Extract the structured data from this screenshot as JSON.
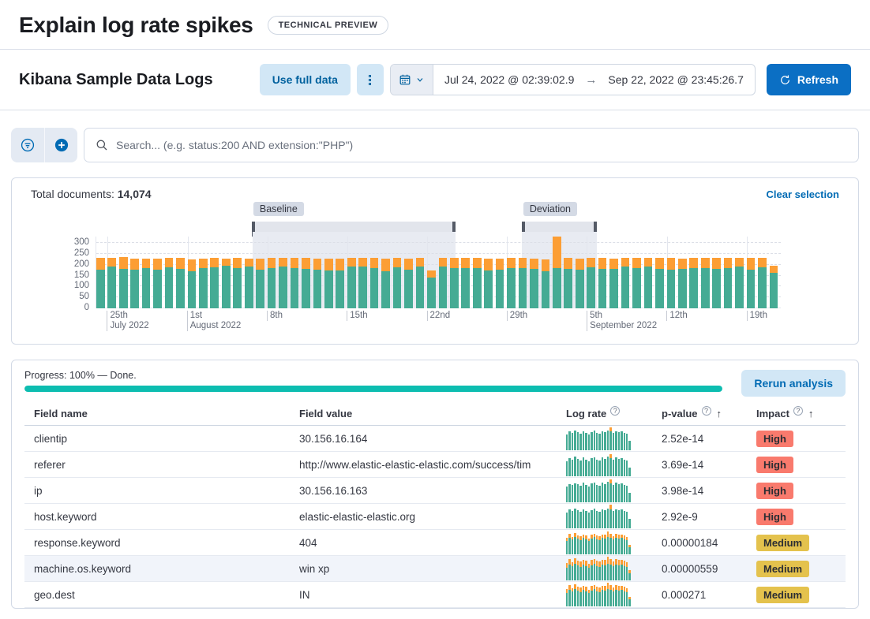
{
  "header": {
    "title": "Explain log rate spikes",
    "badge": "TECHNICAL PREVIEW"
  },
  "toolbar": {
    "dataview": "Kibana Sample Data Logs",
    "use_full_data": "Use full data",
    "date_start": "Jul 24, 2022 @ 02:39:02.9",
    "date_arrow": "→",
    "date_end": "Sep 22, 2022 @ 23:45:26.7",
    "refresh": "Refresh"
  },
  "search": {
    "placeholder": "Search... (e.g. status:200 AND extension:\"PHP\")"
  },
  "doc_count": {
    "label": "Total documents: ",
    "value": "14,074",
    "clear": "Clear selection"
  },
  "chart_data": {
    "type": "bar",
    "title": "Document count histogram",
    "stacked": true,
    "x_unit": "day",
    "x_start": "Jul 24, 2022",
    "x_end": "Sep 21, 2022",
    "y_ticks": [
      0,
      50,
      100,
      150,
      200,
      250,
      300
    ],
    "y_max": 330,
    "grid": true,
    "x_ticks": [
      {
        "label": "25th",
        "sub": "July 2022",
        "index": 1
      },
      {
        "label": "1st",
        "sub": "August 2022",
        "index": 8
      },
      {
        "label": "8th",
        "index": 15
      },
      {
        "label": "15th",
        "index": 22
      },
      {
        "label": "22nd",
        "index": 29
      },
      {
        "label": "29th",
        "index": 36
      },
      {
        "label": "5th",
        "sub": "September 2022",
        "index": 43
      },
      {
        "label": "12th",
        "index": 50
      },
      {
        "label": "19th",
        "index": 57
      }
    ],
    "series": [
      {
        "name": "doc_count",
        "color": "#45ab94",
        "values": [
          178,
          190,
          182,
          177,
          185,
          176,
          188,
          179,
          170,
          185,
          188,
          195,
          185,
          190,
          177,
          185,
          192,
          184,
          181,
          178,
          174,
          173,
          191,
          192,
          185,
          170,
          189,
          177,
          192,
          141,
          192,
          186,
          183,
          186,
          172,
          178,
          184,
          186,
          180,
          170,
          185,
          180,
          178,
          188,
          182,
          180,
          192,
          183,
          190,
          180,
          178,
          180,
          183,
          185,
          179,
          183,
          190,
          178,
          188,
          162
        ]
      },
      {
        "name": "other",
        "color": "#fc9e34",
        "values": [
          52,
          40,
          53,
          50,
          43,
          52,
          44,
          51,
          55,
          43,
          42,
          33,
          45,
          38,
          51,
          45,
          38,
          46,
          49,
          50,
          54,
          55,
          39,
          38,
          45,
          58,
          41,
          51,
          40,
          32,
          38,
          44,
          47,
          44,
          56,
          50,
          46,
          44,
          48,
          55,
          145,
          50,
          50,
          42,
          48,
          48,
          38,
          47,
          40,
          50,
          52,
          48,
          47,
          45,
          51,
          47,
          40,
          52,
          42,
          33
        ]
      }
    ],
    "annotations": {
      "baseline": {
        "label": "Baseline",
        "start_frac": 0.228,
        "end_frac": 0.525
      },
      "deviation": {
        "label": "Deviation",
        "start_frac": 0.622,
        "end_frac": 0.731
      }
    }
  },
  "analysis": {
    "progress_label": "Progress: 100% — Done.",
    "progress_pct": 100,
    "rerun": "Rerun analysis"
  },
  "table": {
    "columns": [
      {
        "label": "Field name"
      },
      {
        "label": "Field value"
      },
      {
        "label": "Log rate",
        "help": true
      },
      {
        "label": "p-value",
        "help": true,
        "sort": "↑"
      },
      {
        "label": "Impact",
        "help": true,
        "sort": "↑"
      }
    ],
    "rows": [
      {
        "field_name": "clientip",
        "field_value": "30.156.16.164",
        "p_value": "2.52e-14",
        "impact": "High",
        "spark": {
          "g": [
            20,
            24,
            22,
            25,
            23,
            21,
            24,
            22,
            20,
            23,
            25,
            22,
            21,
            24,
            23,
            25,
            24,
            22,
            24,
            23,
            24,
            22,
            21,
            12
          ],
          "o": [
            0,
            0,
            0,
            0,
            0,
            0,
            0,
            0,
            0,
            0,
            0,
            0,
            0,
            0,
            0,
            0,
            5,
            0,
            0,
            0,
            0,
            0,
            0,
            0
          ]
        }
      },
      {
        "field_name": "referer",
        "field_value": "http://www.elastic-elastic-elastic.com/success/tim",
        "p_value": "3.69e-14",
        "impact": "High",
        "spark": {
          "g": [
            19,
            23,
            21,
            25,
            22,
            20,
            24,
            21,
            19,
            23,
            24,
            21,
            20,
            24,
            22,
            25,
            23,
            21,
            24,
            22,
            23,
            21,
            20,
            11
          ],
          "o": [
            0,
            0,
            0,
            0,
            0,
            0,
            0,
            0,
            0,
            0,
            0,
            0,
            0,
            0,
            0,
            0,
            5,
            0,
            0,
            0,
            0,
            0,
            0,
            0
          ]
        }
      },
      {
        "field_name": "ip",
        "field_value": "30.156.16.163",
        "p_value": "3.98e-14",
        "impact": "High",
        "spark": {
          "g": [
            20,
            23,
            22,
            24,
            23,
            21,
            25,
            22,
            20,
            24,
            25,
            22,
            21,
            25,
            23,
            26,
            24,
            22,
            25,
            23,
            24,
            22,
            21,
            12
          ],
          "o": [
            0,
            0,
            0,
            0,
            0,
            0,
            0,
            0,
            0,
            0,
            0,
            0,
            0,
            0,
            0,
            0,
            5,
            0,
            0,
            0,
            0,
            0,
            0,
            0
          ]
        }
      },
      {
        "field_name": "host.keyword",
        "field_value": "elastic-elastic-elastic.org",
        "p_value": "2.92e-9",
        "impact": "High",
        "spark": {
          "g": [
            20,
            24,
            22,
            25,
            23,
            21,
            24,
            22,
            20,
            23,
            25,
            22,
            21,
            24,
            23,
            25,
            24,
            22,
            24,
            23,
            24,
            22,
            21,
            12
          ],
          "o": [
            0,
            0,
            0,
            0,
            0,
            0,
            0,
            0,
            0,
            0,
            0,
            0,
            0,
            0,
            0,
            0,
            6,
            0,
            0,
            0,
            0,
            0,
            0,
            0
          ]
        }
      },
      {
        "field_name": "response.keyword",
        "field_value": "404",
        "p_value": "0.00000184",
        "impact": "Medium",
        "spark": {
          "g": [
            17,
            21,
            19,
            22,
            20,
            18,
            21,
            19,
            17,
            20,
            22,
            19,
            18,
            21,
            20,
            22,
            21,
            19,
            21,
            20,
            21,
            19,
            18,
            9
          ],
          "o": [
            4,
            5,
            3,
            5,
            4,
            5,
            4,
            5,
            3,
            5,
            4,
            5,
            5,
            4,
            5,
            7,
            5,
            4,
            5,
            5,
            4,
            5,
            4,
            3
          ]
        }
      },
      {
        "field_name": "machine.os.keyword",
        "field_value": "win xp",
        "p_value": "0.00000559",
        "impact": "Medium",
        "highlighted": true,
        "spark": {
          "g": [
            16,
            20,
            18,
            21,
            19,
            17,
            20,
            18,
            16,
            19,
            21,
            18,
            17,
            20,
            19,
            21,
            20,
            18,
            20,
            19,
            20,
            18,
            17,
            9
          ],
          "o": [
            6,
            7,
            5,
            7,
            6,
            7,
            6,
            7,
            5,
            7,
            6,
            7,
            7,
            6,
            7,
            9,
            7,
            6,
            7,
            7,
            6,
            7,
            6,
            4
          ]
        }
      },
      {
        "field_name": "geo.dest",
        "field_value": "IN",
        "p_value": "0.000271",
        "impact": "Medium",
        "spark": {
          "g": [
            17,
            21,
            19,
            22,
            20,
            18,
            21,
            19,
            17,
            20,
            22,
            19,
            18,
            21,
            20,
            22,
            21,
            19,
            21,
            20,
            21,
            19,
            18,
            9
          ],
          "o": [
            5,
            6,
            4,
            6,
            5,
            6,
            5,
            6,
            4,
            6,
            5,
            6,
            6,
            5,
            6,
            8,
            6,
            5,
            6,
            6,
            5,
            6,
            5,
            3
          ]
        }
      }
    ]
  },
  "colors": {
    "accent_blue": "#006bb4",
    "primary_button": "#0b6fc4",
    "light_button_bg": "#d2e7f6",
    "bar_green": "#45ab94",
    "bar_orange": "#fc9e34",
    "progress_teal": "#0dbdb0",
    "badge_high": "#f97a6d",
    "badge_medium": "#e4c24d"
  }
}
